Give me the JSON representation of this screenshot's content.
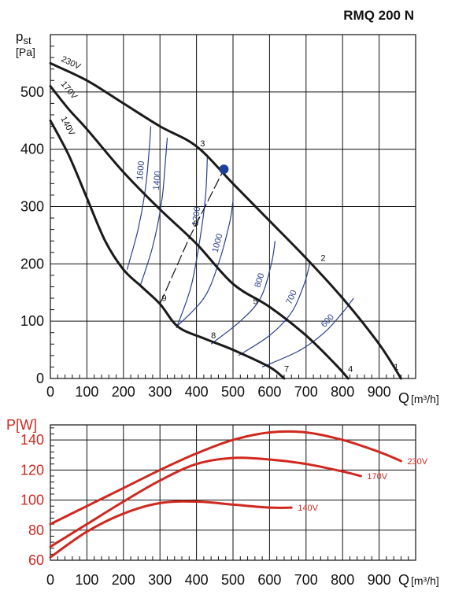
{
  "title": "RMQ 200 N",
  "chart_data": [
    {
      "type": "line",
      "ylabel_main": "pst",
      "ylabel_unit": "[Pa]",
      "xlabel": "Q",
      "xlabel_unit": "[m³/h]",
      "xlim": [
        0,
        1000
      ],
      "ylim": [
        0,
        600
      ],
      "xticks": [
        "0",
        "100",
        "200",
        "300",
        "400",
        "500",
        "600",
        "700",
        "800",
        "900"
      ],
      "yticks": [
        "0",
        "100",
        "200",
        "300",
        "400",
        "500"
      ],
      "grid": true,
      "colors": {
        "fan": "#1a1a1a",
        "iso": "#2a3f8f",
        "op": "#1f3f99"
      },
      "series": [
        {
          "name": "230V",
          "points": [
            [
              0,
              550
            ],
            [
              100,
              520
            ],
            [
              200,
              480
            ],
            [
              300,
              440
            ],
            [
              400,
              405
            ],
            [
              500,
              340
            ],
            [
              600,
              275
            ],
            [
              700,
              210
            ],
            [
              800,
              140
            ],
            [
              900,
              60
            ],
            [
              960,
              0
            ]
          ]
        },
        {
          "name": "170V",
          "points": [
            [
              0,
              510
            ],
            [
              50,
              470
            ],
            [
              100,
              435
            ],
            [
              200,
              360
            ],
            [
              300,
              295
            ],
            [
              400,
              235
            ],
            [
              500,
              165
            ],
            [
              600,
              125
            ],
            [
              700,
              75
            ],
            [
              780,
              25
            ],
            [
              815,
              0
            ]
          ]
        },
        {
          "name": "140V",
          "points": [
            [
              0,
              450
            ],
            [
              50,
              390
            ],
            [
              100,
              315
            ],
            [
              150,
              240
            ],
            [
              200,
              190
            ],
            [
              250,
              160
            ],
            [
              300,
              130
            ],
            [
              350,
              90
            ],
            [
              420,
              70
            ],
            [
              500,
              50
            ],
            [
              600,
              20
            ],
            [
              640,
              0
            ]
          ]
        }
      ],
      "curve_labels": [
        "230V",
        "170V",
        "140V"
      ],
      "iso_lines": [
        {
          "label": "1600",
          "points": [
            [
              210,
              190
            ],
            [
              240,
              260
            ],
            [
              260,
              330
            ],
            [
              270,
              395
            ],
            [
              275,
              440
            ]
          ]
        },
        {
          "label": "1400",
          "points": [
            [
              245,
              160
            ],
            [
              280,
              230
            ],
            [
              305,
              310
            ],
            [
              315,
              380
            ],
            [
              320,
              420
            ]
          ]
        },
        {
          "label": "1200",
          "points": [
            [
              345,
              88
            ],
            [
              385,
              160
            ],
            [
              410,
              245
            ],
            [
              425,
              320
            ],
            [
              430,
              390
            ]
          ]
        },
        {
          "label": "1000",
          "points": [
            [
              345,
              90
            ],
            [
              420,
              140
            ],
            [
              460,
              200
            ],
            [
              490,
              270
            ],
            [
              500,
              310
            ]
          ]
        },
        {
          "label": "800",
          "points": [
            [
              440,
              60
            ],
            [
              520,
              100
            ],
            [
              575,
              140
            ],
            [
              605,
              200
            ],
            [
              615,
              240
            ]
          ]
        },
        {
          "label": "700",
          "points": [
            [
              515,
              40
            ],
            [
              600,
              75
            ],
            [
              660,
              115
            ],
            [
              695,
              165
            ],
            [
              710,
              200
            ]
          ]
        },
        {
          "label": "600",
          "points": [
            [
              580,
              20
            ],
            [
              680,
              48
            ],
            [
              750,
              80
            ],
            [
              800,
              115
            ],
            [
              830,
              140
            ]
          ]
        }
      ],
      "point_labels": [
        {
          "label": "1",
          "x": 940,
          "y": 15
        },
        {
          "label": "2",
          "x": 740,
          "y": 205
        },
        {
          "label": "3",
          "x": 410,
          "y": 405
        },
        {
          "label": "4",
          "x": 815,
          "y": 12
        },
        {
          "label": "5",
          "x": 555,
          "y": 130
        },
        {
          "label": "6",
          "x": 390,
          "y": 265
        },
        {
          "label": "7",
          "x": 640,
          "y": 12
        },
        {
          "label": "8",
          "x": 440,
          "y": 70
        },
        {
          "label": "9",
          "x": 305,
          "y": 135
        }
      ],
      "operating_point": {
        "x": 475,
        "y": 365
      },
      "system_curve": [
        [
          300,
          130
        ],
        [
          380,
          245
        ],
        [
          475,
          365
        ]
      ]
    },
    {
      "type": "line",
      "ylabel": "P[W]",
      "xlabel": "Q",
      "xlabel_unit": "[m³/h]",
      "xlim": [
        0,
        1000
      ],
      "ylim": [
        60,
        150
      ],
      "xticks": [
        "0",
        "100",
        "200",
        "300",
        "400",
        "500",
        "600",
        "700",
        "800",
        "900"
      ],
      "yticks": [
        "60",
        "80",
        "100",
        "120",
        "140"
      ],
      "grid": true,
      "color": "#d0281e",
      "series": [
        {
          "name": "230V",
          "points": [
            [
              0,
              84
            ],
            [
              100,
              96
            ],
            [
              200,
              108
            ],
            [
              300,
              120
            ],
            [
              400,
              131
            ],
            [
              500,
              140
            ],
            [
              600,
              145
            ],
            [
              700,
              145
            ],
            [
              800,
              140
            ],
            [
              900,
              132
            ],
            [
              960,
              126
            ]
          ]
        },
        {
          "name": "170V",
          "points": [
            [
              0,
              69
            ],
            [
              100,
              84
            ],
            [
              200,
              99
            ],
            [
              300,
              113
            ],
            [
              400,
              124
            ],
            [
              500,
              128
            ],
            [
              600,
              127
            ],
            [
              700,
              124
            ],
            [
              800,
              119
            ],
            [
              850,
              116
            ]
          ]
        },
        {
          "name": "140V",
          "points": [
            [
              0,
              62
            ],
            [
              100,
              79
            ],
            [
              200,
              91
            ],
            [
              300,
              98
            ],
            [
              400,
              99
            ],
            [
              500,
              97
            ],
            [
              600,
              95
            ],
            [
              660,
              95
            ]
          ]
        }
      ]
    }
  ]
}
